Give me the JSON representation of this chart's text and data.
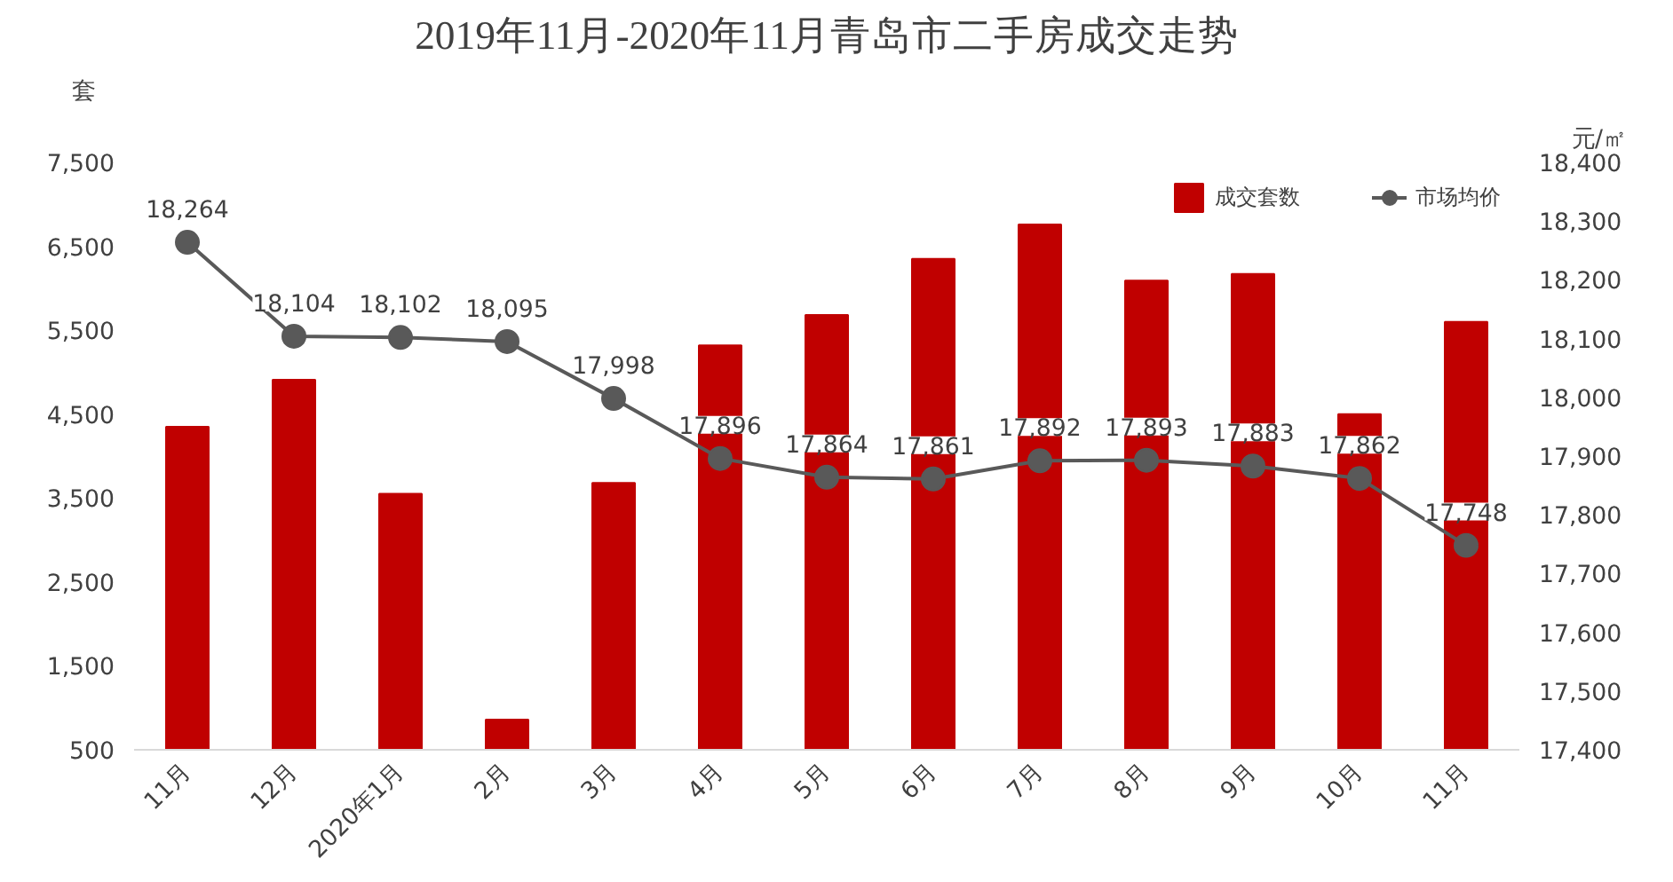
{
  "chart_data": {
    "type": "bar",
    "title": "2019年11月-2020年11月青岛市二手房成交走势",
    "categories": [
      "11月",
      "12月",
      "2020年1月",
      "2月",
      "3月",
      "4月",
      "5月",
      "6月",
      "7月",
      "8月",
      "9月",
      "10月",
      "11月"
    ],
    "ylabel": "套",
    "y2label": "元/㎡",
    "ylim": [
      500,
      7500
    ],
    "yticks": [
      {
        "value": 500,
        "label": "500"
      },
      {
        "value": 1500,
        "label": "1,500"
      },
      {
        "value": 2500,
        "label": "2,500"
      },
      {
        "value": 3500,
        "label": "3,500"
      },
      {
        "value": 4500,
        "label": "4,500"
      },
      {
        "value": 5500,
        "label": "5,500"
      },
      {
        "value": 6500,
        "label": "6,500"
      },
      {
        "value": 7500,
        "label": "7,500"
      }
    ],
    "y2lim": [
      17400,
      18400
    ],
    "y2ticks": [
      {
        "value": 17400,
        "label": "17,400"
      },
      {
        "value": 17500,
        "label": "17,500"
      },
      {
        "value": 17600,
        "label": "17,600"
      },
      {
        "value": 17700,
        "label": "17,700"
      },
      {
        "value": 17800,
        "label": "17,800"
      },
      {
        "value": 17900,
        "label": "17,900"
      },
      {
        "value": 18000,
        "label": "18,000"
      },
      {
        "value": 18100,
        "label": "18,100"
      },
      {
        "value": 18200,
        "label": "18,200"
      },
      {
        "value": 18300,
        "label": "18,300"
      },
      {
        "value": 18400,
        "label": "18,400"
      }
    ],
    "series": [
      {
        "name": "成交套数",
        "color": "#c00000",
        "values": [
          4350,
          4910,
          3550,
          860,
          3680,
          5320,
          5680,
          6350,
          6760,
          6090,
          6170,
          4500,
          5600
        ]
      },
      {
        "name": "市场均价",
        "type": "line",
        "axis": "y2",
        "color": "#595959",
        "marker": "circle",
        "line_style": "solid",
        "values": [
          18264,
          18104,
          18102,
          18095,
          17998,
          17896,
          17864,
          17861,
          17892,
          17893,
          17883,
          17862,
          17748
        ],
        "value_labels": [
          "18,264",
          "18,104",
          "18,102",
          "18,095",
          "17,998",
          "17,896",
          "17,864",
          "17,861",
          "17,892",
          "17,893",
          "17,883",
          "17,862",
          "17,748"
        ]
      }
    ],
    "legend": "top right",
    "grid": false
  }
}
